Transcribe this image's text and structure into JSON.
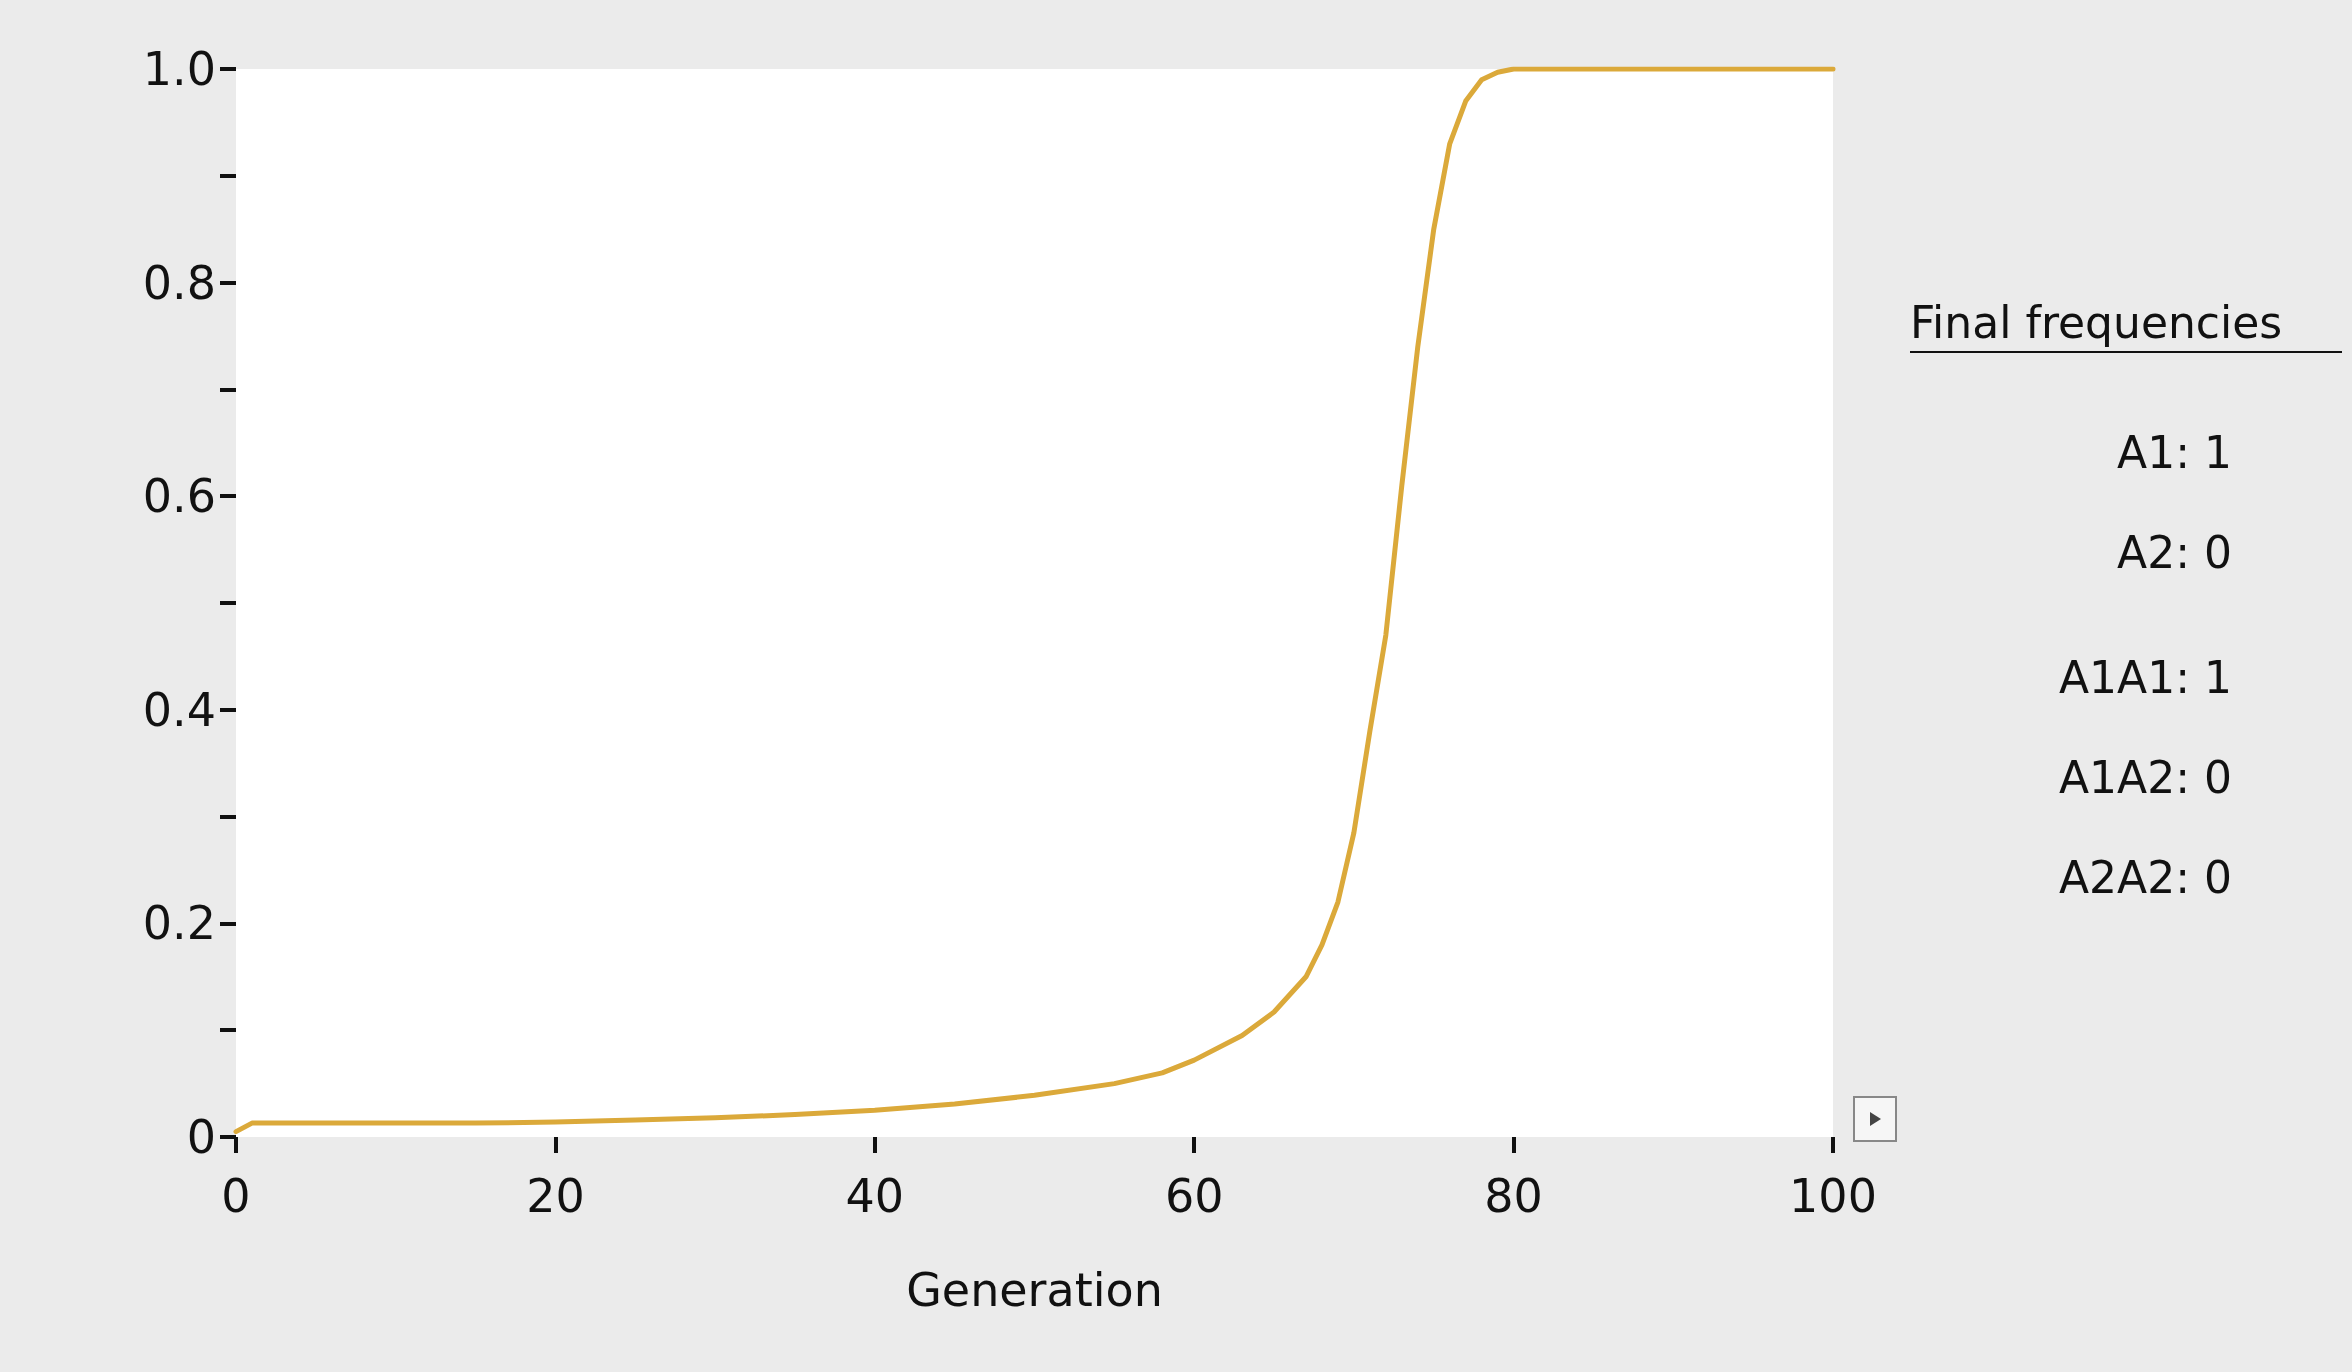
{
  "chart_data": {
    "type": "line",
    "xlabel": "Generation",
    "x": [
      0,
      1,
      5,
      10,
      15,
      20,
      25,
      30,
      35,
      40,
      45,
      50,
      55,
      58,
      60,
      63,
      65,
      67,
      68,
      69,
      70,
      71,
      72,
      73,
      74,
      75,
      76,
      77,
      78,
      79,
      80,
      85,
      90,
      95,
      100
    ],
    "series": [
      {
        "color": "#dba93a",
        "values": [
          0.005,
          0.013,
          0.013,
          0.013,
          0.013,
          0.014,
          0.016,
          0.018,
          0.021,
          0.025,
          0.031,
          0.039,
          0.05,
          0.06,
          0.072,
          0.095,
          0.117,
          0.15,
          0.18,
          0.22,
          0.285,
          0.38,
          0.47,
          0.61,
          0.74,
          0.85,
          0.93,
          0.97,
          0.99,
          0.997,
          1,
          1,
          1,
          1,
          1
        ]
      }
    ],
    "xlim": [
      0,
      100
    ],
    "xticks": [
      0,
      20,
      40,
      60,
      80,
      100
    ],
    "ylim": [
      0,
      1
    ],
    "yticks": [
      0,
      {
        "value": 0.1,
        "label": null
      },
      0.2,
      {
        "value": 0.3,
        "label": null
      },
      0.4,
      {
        "value": 0.5,
        "label": null
      },
      0.6,
      {
        "value": 0.7,
        "label": null
      },
      0.8,
      {
        "value": 0.9,
        "label": null
      },
      {
        "value": 1,
        "label": "1.0"
      }
    ],
    "grid": false,
    "marker": "none",
    "line_style": "solid",
    "annotations": [
      "Final frequencies",
      "A1: 1",
      "A2: 0",
      "A1A1: 1",
      "A1A2: 0",
      "A2A2: 0"
    ]
  }
}
